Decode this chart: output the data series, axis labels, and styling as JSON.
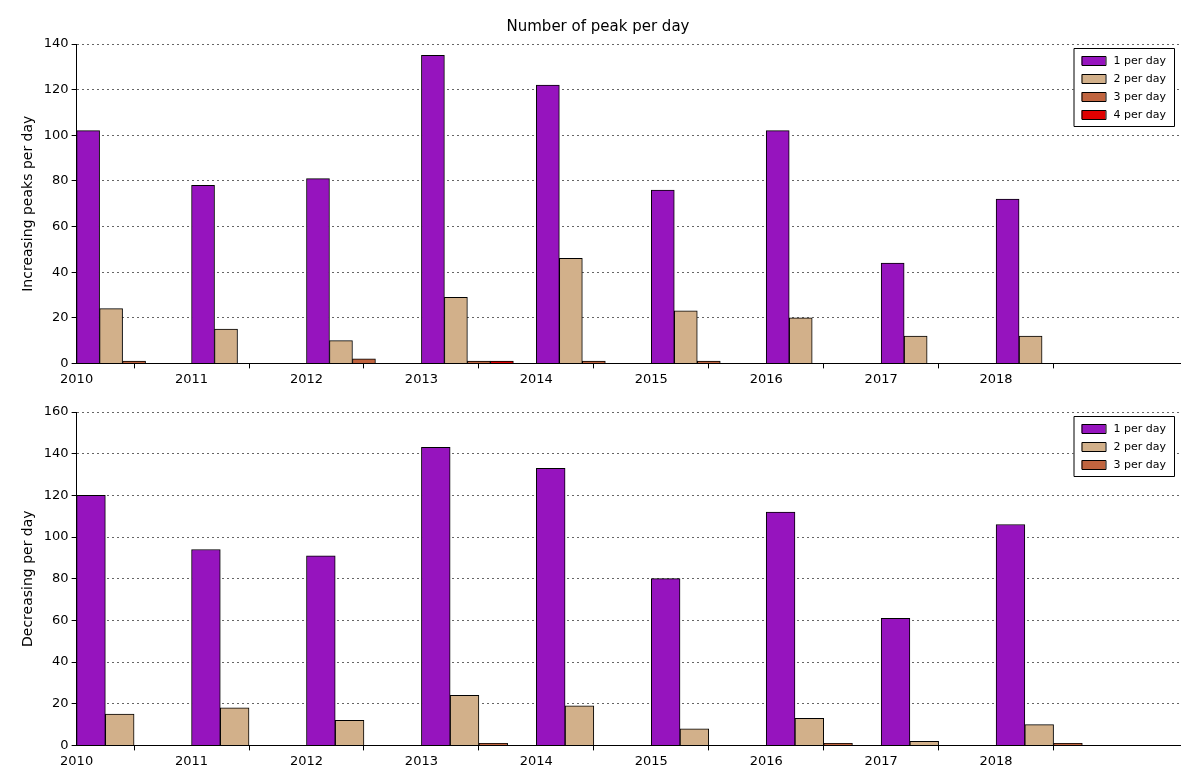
{
  "chart_data": [
    {
      "type": "bar",
      "title": "Number of peak per day",
      "ylabel": "Increasing peaks per day",
      "xlim": [
        2010,
        2019.6
      ],
      "xticks": [
        2010,
        2011,
        2012,
        2013,
        2014,
        2015,
        2016,
        2017,
        2018
      ],
      "ylim": [
        0,
        140
      ],
      "yticks": [
        0,
        20,
        40,
        60,
        80,
        100,
        120,
        140
      ],
      "grid": "y",
      "legend": "top right",
      "series": [
        {
          "name": "1 per day",
          "color": "#9614be",
          "x": [
            2010.1,
            2011.1,
            2012.1,
            2013.1,
            2014.1,
            2015.1,
            2016.1,
            2017.1,
            2018.1
          ],
          "values": [
            102,
            78,
            81,
            135,
            122,
            76,
            102,
            44,
            72
          ]
        },
        {
          "name": "2 per day",
          "color": "#d2b08a",
          "x": [
            2010.3,
            2011.3,
            2012.3,
            2013.3,
            2014.3,
            2015.3,
            2016.3,
            2017.3,
            2018.3
          ],
          "values": [
            24,
            15,
            10,
            29,
            46,
            23,
            20,
            12,
            12
          ]
        },
        {
          "name": "3 per day",
          "color": "#c0643f",
          "x": [
            2010.5,
            2011.5,
            2012.5,
            2013.5,
            2014.5,
            2015.5,
            2016.5,
            2017.5,
            2018.5
          ],
          "values": [
            1,
            0,
            2,
            1,
            1,
            1,
            0,
            0,
            0
          ]
        },
        {
          "name": "4 per day",
          "color": "#e00000",
          "x": [
            2010.7,
            2011.7,
            2012.7,
            2013.7,
            2014.7,
            2015.7,
            2016.7,
            2017.7,
            2018.7
          ],
          "values": [
            0,
            0,
            0,
            1,
            0,
            0,
            0,
            0,
            0
          ]
        }
      ]
    },
    {
      "type": "bar",
      "ylabel": "Decreasing per day",
      "xlim": [
        2010,
        2019.6
      ],
      "xticks": [
        2010,
        2011,
        2012,
        2013,
        2014,
        2015,
        2016,
        2017,
        2018
      ],
      "ylim": [
        0,
        160
      ],
      "yticks": [
        0,
        20,
        40,
        60,
        80,
        100,
        120,
        140,
        160
      ],
      "grid": "y",
      "legend": "top right",
      "series": [
        {
          "name": "1 per day",
          "color": "#9614be",
          "x": [
            2010.125,
            2011.125,
            2012.125,
            2013.125,
            2014.125,
            2015.125,
            2016.125,
            2017.125,
            2018.125
          ],
          "values": [
            120,
            94,
            91,
            143,
            133,
            80,
            112,
            61,
            106
          ]
        },
        {
          "name": "2 per day",
          "color": "#d2b08a",
          "x": [
            2010.375,
            2011.375,
            2012.375,
            2013.375,
            2014.375,
            2015.375,
            2016.375,
            2017.375,
            2018.375
          ],
          "values": [
            15,
            18,
            12,
            24,
            19,
            8,
            13,
            2,
            10
          ]
        },
        {
          "name": "3 per day",
          "color": "#c0643f",
          "x": [
            2010.625,
            2011.625,
            2012.625,
            2013.625,
            2014.625,
            2015.625,
            2016.625,
            2017.625,
            2018.625
          ],
          "values": [
            0,
            0,
            0,
            1,
            0,
            0,
            1,
            0,
            1
          ]
        }
      ]
    }
  ]
}
